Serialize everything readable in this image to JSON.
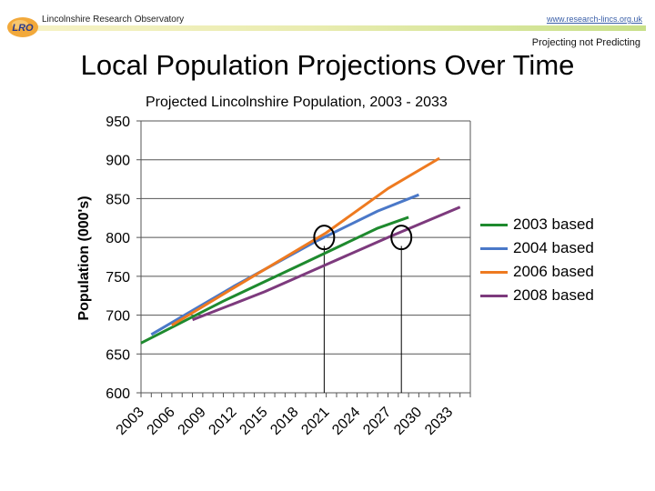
{
  "header": {
    "org": "Lincolnshire Research Observatory",
    "logo_text": "LRO",
    "url": "www.research-lincs.org.uk",
    "tagline": "Projecting not Predicting"
  },
  "slide_title": "Local Population Projections Over Time",
  "chart_data": {
    "type": "line",
    "title": "Projected Lincolnshire Population, 2003 - 2033",
    "xlabel": "",
    "ylabel": "Population  (000's)",
    "xlim": [
      2003,
      2035
    ],
    "ylim": [
      600,
      950
    ],
    "yticks": [
      600,
      650,
      700,
      750,
      800,
      850,
      900,
      950
    ],
    "xticks": [
      2003,
      2006,
      2009,
      2012,
      2015,
      2018,
      2021,
      2024,
      2027,
      2030,
      2033
    ],
    "grid": "horizontal",
    "legend_position": "right",
    "series": [
      {
        "name": "2003 based",
        "color": "#1e8a2e",
        "x": [
          2003,
          2011,
          2019,
          2026,
          2029
        ],
        "y": [
          664,
          718,
          768,
          812,
          826
        ]
      },
      {
        "name": "2004 based",
        "color": "#4a78c8",
        "x": [
          2004,
          2012,
          2020,
          2026,
          2030
        ],
        "y": [
          675,
          737,
          795,
          834,
          855
        ]
      },
      {
        "name": "2006 based",
        "color": "#ee7a20",
        "x": [
          2006,
          2012,
          2021,
          2027,
          2032
        ],
        "y": [
          687,
          735,
          806,
          863,
          902
        ]
      },
      {
        "name": "2008 based",
        "color": "#7d3a7d",
        "x": [
          2008,
          2015,
          2021,
          2027,
          2034
        ],
        "y": [
          694,
          730,
          765,
          800,
          839
        ]
      }
    ],
    "annotations": {
      "circles": [
        {
          "x": 2020.8,
          "y": 800
        },
        {
          "x": 2028.3,
          "y": 800
        }
      ],
      "marker_lines": [
        {
          "x": 2020.8,
          "from": 600,
          "to": 789
        },
        {
          "x": 2028.3,
          "from": 600,
          "to": 789
        }
      ]
    }
  }
}
